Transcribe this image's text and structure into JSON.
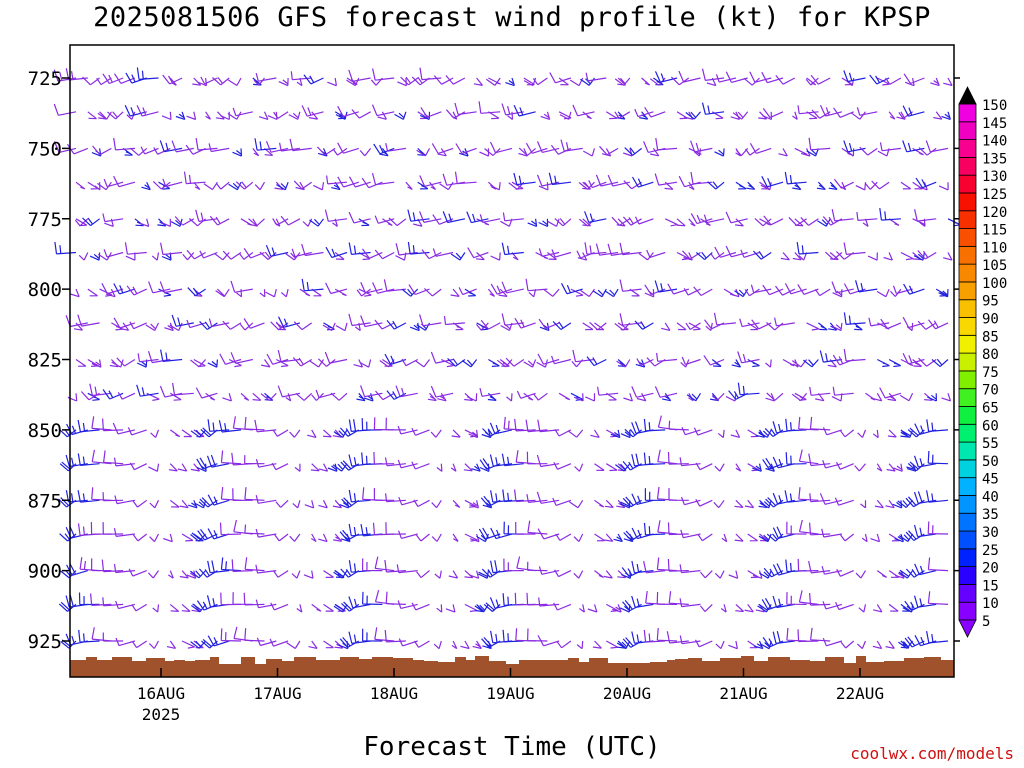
{
  "title": "2025081506 GFS forecast wind profile (kt) for KPSP",
  "xlabel": "Forecast Time (UTC)",
  "credit": "coolwx.com/models",
  "chart_data": {
    "type": "wind-barb-time-height",
    "title": "2025081506 GFS forecast wind profile (kt) for KPSP",
    "xlabel": "Forecast Time (UTC)",
    "ylabel": "",
    "y_axis": {
      "scale": "pressure",
      "ticks": [
        725,
        750,
        775,
        800,
        825,
        850,
        875,
        900,
        925
      ],
      "range": [
        935,
        712
      ]
    },
    "x_axis": {
      "ticks": [
        "16AUG",
        "17AUG",
        "18AUG",
        "19AUG",
        "20AUG",
        "21AUG",
        "22AUG"
      ],
      "sub_label": {
        "tick": "16AUG",
        "text": "2025"
      }
    },
    "levels": [
      725,
      737,
      750,
      762,
      775,
      787,
      800,
      812,
      825,
      837,
      850,
      862,
      875,
      887,
      900,
      912,
      925
    ],
    "colorbar": {
      "labels": [
        5,
        10,
        15,
        20,
        25,
        30,
        35,
        40,
        45,
        50,
        55,
        60,
        65,
        70,
        75,
        80,
        85,
        90,
        95,
        100,
        105,
        110,
        115,
        120,
        125,
        130,
        135,
        140,
        145,
        150
      ],
      "colors": [
        "#8800ff",
        "#6600ff",
        "#2a00ff",
        "#0022ff",
        "#0050ff",
        "#0074ff",
        "#0095ff",
        "#00b2ff",
        "#00d2e0",
        "#00e8b0",
        "#00f070",
        "#10f040",
        "#40f020",
        "#80f000",
        "#c8f000",
        "#f0f000",
        "#f8d800",
        "#f8c000",
        "#f8a000",
        "#f88800",
        "#f87000",
        "#f85000",
        "#f83000",
        "#f81000",
        "#f80030",
        "#f80060",
        "#f80090",
        "#f000c0",
        "#f000e0",
        "#f000f8"
      ]
    },
    "barb_color": "#8a2be2",
    "strong_barb_color": "#2020e0",
    "terrain_color": "#a0522d"
  }
}
